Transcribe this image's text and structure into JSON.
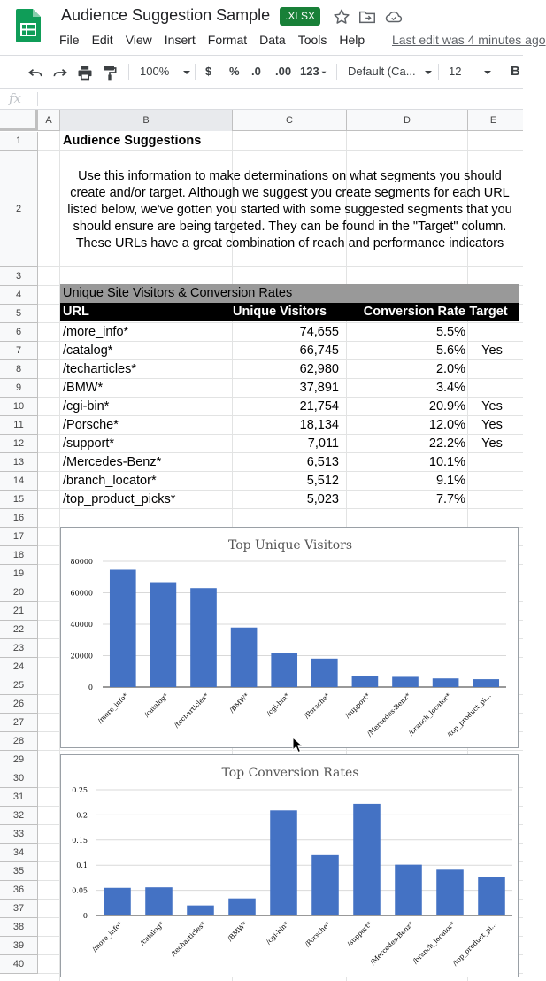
{
  "header": {
    "doc_title": "Audience Suggestion Sample",
    "badge": ".XLSX",
    "menu": [
      "File",
      "Edit",
      "View",
      "Insert",
      "Format",
      "Data",
      "Tools",
      "Help"
    ],
    "last_edit": "Last edit was 4 minutes ago"
  },
  "toolbar": {
    "zoom": "100%",
    "currency": "$",
    "percent": "%",
    "dec_decrease": ".0",
    "dec_increase": ".00",
    "more_formats": "123",
    "font": "Default (Ca...",
    "font_size": "12",
    "bold": "B"
  },
  "formula_bar": {
    "fx": "fx",
    "value": ""
  },
  "columns": [
    "A",
    "B",
    "C",
    "D",
    "E"
  ],
  "rows": [
    "1",
    "2",
    "3",
    "4",
    "5",
    "6",
    "7",
    "8",
    "9",
    "10",
    "11",
    "12",
    "13",
    "14",
    "15",
    "16",
    "17",
    "18",
    "19",
    "20",
    "21",
    "22",
    "23",
    "24",
    "25",
    "26",
    "27",
    "28",
    "29",
    "30",
    "31",
    "32",
    "33",
    "34",
    "35",
    "36",
    "37",
    "38",
    "39",
    "40"
  ],
  "sheet": {
    "title": "Audience Suggestions",
    "paragraph": "Use this information to make determinations on what segments you should create and/or target. Although we suggest you create segments for each URL listed below, we've gotten you started with some suggested segments that you should ensure are being targeted. They can be found in the \"Target\" column. These URLs have a great combination of reach and performance indicators",
    "table_title": "Unique Site Visitors & Conversion Rates",
    "headers": [
      "URL",
      "Unique Visitors",
      "Conversion Rate",
      "Target"
    ],
    "table": [
      {
        "url": "/more_info*",
        "visitors": "74,655",
        "rate": "5.5%",
        "target": ""
      },
      {
        "url": "/catalog*",
        "visitors": "66,745",
        "rate": "5.6%",
        "target": "Yes"
      },
      {
        "url": "/techarticles*",
        "visitors": "62,980",
        "rate": "2.0%",
        "target": ""
      },
      {
        "url": "/BMW*",
        "visitors": "37,891",
        "rate": "3.4%",
        "target": ""
      },
      {
        "url": "/cgi-bin*",
        "visitors": "21,754",
        "rate": "20.9%",
        "target": "Yes"
      },
      {
        "url": "/Porsche*",
        "visitors": "18,134",
        "rate": "12.0%",
        "target": "Yes"
      },
      {
        "url": "/support*",
        "visitors": "7,011",
        "rate": "22.2%",
        "target": "Yes"
      },
      {
        "url": "/Mercedes-Benz*",
        "visitors": "6,513",
        "rate": "10.1%",
        "target": ""
      },
      {
        "url": "/branch_locator*",
        "visitors": "5,512",
        "rate": "9.1%",
        "target": ""
      },
      {
        "url": "/top_product_picks*",
        "visitors": "5,023",
        "rate": "7.7%",
        "target": ""
      }
    ]
  },
  "chart_data": [
    {
      "type": "bar",
      "title": "Top Unique Visitors",
      "categories": [
        "/more_info*",
        "/catalog*",
        "/techarticles*",
        "/BMW*",
        "/cgi-bin*",
        "/Porsche*",
        "/support*",
        "/Mercedes-Benz*",
        "/branch_locator*",
        "/top_product_pi..."
      ],
      "values": [
        74655,
        66745,
        62980,
        37891,
        21754,
        18134,
        7011,
        6513,
        5512,
        5023
      ],
      "ylim": [
        0,
        80000
      ],
      "yticks": [
        "0",
        "20000",
        "40000",
        "60000",
        "80000"
      ],
      "xlabel": "",
      "ylabel": "",
      "grid": true,
      "color": "#4472c4"
    },
    {
      "type": "bar",
      "title": "Top Conversion Rates",
      "categories": [
        "/more_info*",
        "/catalog*",
        "/techarticles*",
        "/BMW*",
        "/cgi-bin*",
        "/Porsche*",
        "/support*",
        "/Mercedes-Benz*",
        "/branch_locator*",
        "/top_product_pi..."
      ],
      "values": [
        0.055,
        0.056,
        0.02,
        0.034,
        0.209,
        0.12,
        0.222,
        0.101,
        0.091,
        0.077
      ],
      "ylim": [
        0,
        0.25
      ],
      "yticks": [
        "0",
        "0.05",
        "0.1",
        "0.15",
        "0.2",
        "0.25"
      ],
      "xlabel": "",
      "ylabel": "",
      "grid": true,
      "color": "#4472c4"
    }
  ],
  "colors": {
    "accent_green": "#188038",
    "header_gray": "#999999",
    "header_black": "#000000",
    "bar_blue": "#4472c4"
  },
  "icons": [
    "sheets-logo-icon",
    "star-icon",
    "folder-move-icon",
    "cloud-status-icon",
    "undo-icon",
    "redo-icon",
    "print-icon",
    "paint-format-icon"
  ]
}
